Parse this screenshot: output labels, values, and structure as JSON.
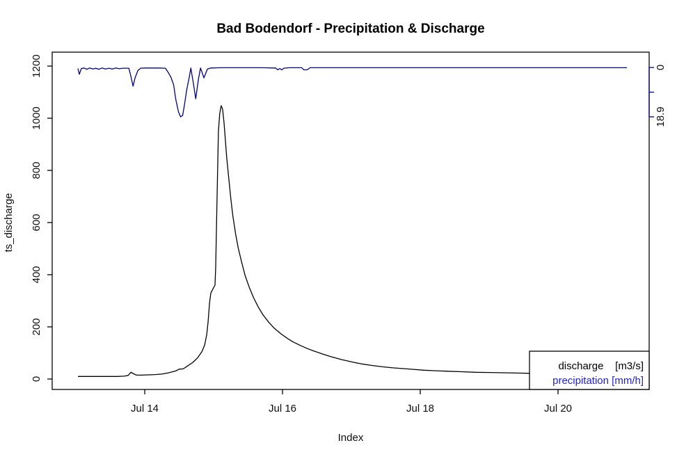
{
  "title": "Bad Bodendorf - Precipitation & Discharge",
  "x_axis": {
    "label": "Index",
    "ticks": [
      {
        "label": "Jul 14",
        "day": 14
      },
      {
        "label": "Jul 16",
        "day": 16
      },
      {
        "label": "Jul 18",
        "day": 18
      },
      {
        "label": "Jul 20",
        "day": 20
      }
    ]
  },
  "y_left": {
    "label": "ts_discharge",
    "ticks": [
      "0",
      "200",
      "400",
      "600",
      "800",
      "1000",
      "1200"
    ]
  },
  "y_right": {
    "ticks": [
      {
        "value": 0,
        "label": "0"
      },
      {
        "value": 9.45,
        "label": ""
      },
      {
        "value": 18.9,
        "label": "18.9"
      }
    ]
  },
  "legend": {
    "items": [
      {
        "label": "discharge    [m3/s]",
        "color": "#000000"
      },
      {
        "label": "precipitation [mm/h]",
        "color": "#2323cc"
      }
    ]
  },
  "colors": {
    "discharge_line": "#000000",
    "precipitation_line": "#000080",
    "precipitation_axis": "#000080",
    "precipitation_text": "#2323cc",
    "frame": "#000000"
  },
  "chart_data": {
    "type": "line",
    "title": "Bad Bodendorf - Precipitation & Discharge",
    "xlabel": "Index",
    "ylabel": "ts_discharge",
    "x_unit": "day of July",
    "x_range": [
      13.0,
      21.0
    ],
    "y_left_range": [
      0,
      1200
    ],
    "y_right_range": [
      0,
      18.9
    ],
    "y_right_inverted_from_top": true,
    "grid": false,
    "legend_position": "bottomright",
    "series": [
      {
        "name": "discharge [m3/s]",
        "axis": "left",
        "color": "#000000",
        "points": [
          [
            13.03,
            10
          ],
          [
            13.2,
            10
          ],
          [
            13.4,
            10
          ],
          [
            13.6,
            10
          ],
          [
            13.7,
            11
          ],
          [
            13.76,
            14
          ],
          [
            13.8,
            26
          ],
          [
            13.84,
            20
          ],
          [
            13.88,
            15
          ],
          [
            13.95,
            15
          ],
          [
            14.05,
            16
          ],
          [
            14.15,
            17
          ],
          [
            14.25,
            19
          ],
          [
            14.35,
            24
          ],
          [
            14.45,
            31
          ],
          [
            14.5,
            38
          ],
          [
            14.56,
            39
          ],
          [
            14.62,
            50
          ],
          [
            14.7,
            64
          ],
          [
            14.77,
            82
          ],
          [
            14.83,
            105
          ],
          [
            14.87,
            130
          ],
          [
            14.9,
            170
          ],
          [
            14.92,
            220
          ],
          [
            14.94,
            290
          ],
          [
            14.96,
            330
          ],
          [
            14.99,
            345
          ],
          [
            15.02,
            360
          ],
          [
            15.03,
            430
          ],
          [
            15.05,
            700
          ],
          [
            15.07,
            950
          ],
          [
            15.09,
            1020
          ],
          [
            15.11,
            1048
          ],
          [
            15.13,
            1035
          ],
          [
            15.15,
            985
          ],
          [
            15.17,
            920
          ],
          [
            15.19,
            850
          ],
          [
            15.22,
            770
          ],
          [
            15.25,
            690
          ],
          [
            15.28,
            625
          ],
          [
            15.32,
            555
          ],
          [
            15.36,
            500
          ],
          [
            15.41,
            445
          ],
          [
            15.46,
            395
          ],
          [
            15.52,
            350
          ],
          [
            15.58,
            312
          ],
          [
            15.65,
            275
          ],
          [
            15.72,
            245
          ],
          [
            15.8,
            218
          ],
          [
            15.88,
            195
          ],
          [
            15.97,
            175
          ],
          [
            16.06,
            158
          ],
          [
            16.15,
            143
          ],
          [
            16.25,
            130
          ],
          [
            16.35,
            118
          ],
          [
            16.45,
            108
          ],
          [
            16.57,
            97
          ],
          [
            16.7,
            86
          ],
          [
            16.85,
            75
          ],
          [
            17.0,
            66
          ],
          [
            17.15,
            58
          ],
          [
            17.3,
            52
          ],
          [
            17.45,
            47
          ],
          [
            17.6,
            43
          ],
          [
            17.75,
            40
          ],
          [
            17.9,
            37
          ],
          [
            18.05,
            34
          ],
          [
            18.2,
            32
          ],
          [
            18.4,
            30
          ],
          [
            18.6,
            28
          ],
          [
            18.8,
            26
          ],
          [
            19.0,
            25
          ],
          [
            19.2,
            24
          ],
          [
            19.4,
            23
          ],
          [
            19.6,
            22
          ],
          [
            19.8,
            21
          ],
          [
            20.0,
            21
          ],
          [
            20.2,
            20
          ],
          [
            20.4,
            20
          ],
          [
            20.6,
            19
          ],
          [
            20.8,
            19
          ],
          [
            21.0,
            19
          ]
        ]
      },
      {
        "name": "precipitation [mm/h]",
        "axis": "right",
        "color": "#000080",
        "points": [
          [
            13.03,
            0.4
          ],
          [
            13.05,
            2.6
          ],
          [
            13.08,
            0.4
          ],
          [
            13.12,
            0.2
          ],
          [
            13.16,
            0.7
          ],
          [
            13.2,
            0.2
          ],
          [
            13.25,
            0.6
          ],
          [
            13.29,
            0.3
          ],
          [
            13.33,
            0.7
          ],
          [
            13.38,
            0.2
          ],
          [
            13.43,
            0.6
          ],
          [
            13.48,
            0.3
          ],
          [
            13.53,
            0.6
          ],
          [
            13.58,
            0.2
          ],
          [
            13.63,
            0.5
          ],
          [
            13.68,
            0.3
          ],
          [
            13.73,
            0.3
          ],
          [
            13.77,
            0.3
          ],
          [
            13.8,
            3.5
          ],
          [
            13.83,
            7.2
          ],
          [
            13.86,
            4.0
          ],
          [
            13.9,
            1.2
          ],
          [
            13.94,
            0.3
          ],
          [
            14.0,
            0.2
          ],
          [
            14.1,
            0.2
          ],
          [
            14.2,
            0.2
          ],
          [
            14.3,
            0.3
          ],
          [
            14.34,
            1.9
          ],
          [
            14.38,
            3.7
          ],
          [
            14.42,
            6.7
          ],
          [
            14.45,
            12.0
          ],
          [
            14.47,
            14.6
          ],
          [
            14.49,
            17.0
          ],
          [
            14.52,
            18.9
          ],
          [
            14.55,
            18.4
          ],
          [
            14.58,
            13.8
          ],
          [
            14.61,
            8.5
          ],
          [
            14.65,
            3.2
          ],
          [
            14.67,
            0.2
          ],
          [
            14.71,
            6.7
          ],
          [
            14.74,
            12.0
          ],
          [
            14.78,
            4.5
          ],
          [
            14.81,
            0.2
          ],
          [
            14.86,
            4.0
          ],
          [
            14.91,
            0.6
          ],
          [
            14.96,
            0.2
          ],
          [
            15.1,
            0.1
          ],
          [
            15.4,
            0.1
          ],
          [
            15.7,
            0.1
          ],
          [
            15.9,
            0.2
          ],
          [
            15.93,
            0.9
          ],
          [
            15.96,
            0.4
          ],
          [
            15.99,
            0.9
          ],
          [
            16.02,
            0.3
          ],
          [
            16.1,
            0.1
          ],
          [
            16.28,
            0.1
          ],
          [
            16.31,
            0.9
          ],
          [
            16.36,
            0.9
          ],
          [
            16.4,
            0.1
          ],
          [
            16.6,
            0.1
          ],
          [
            17.0,
            0.1
          ],
          [
            17.5,
            0.1
          ],
          [
            18.0,
            0.1
          ],
          [
            18.5,
            0.1
          ],
          [
            19.0,
            0.1
          ],
          [
            19.5,
            0.1
          ],
          [
            20.0,
            0.1
          ],
          [
            20.5,
            0.1
          ],
          [
            21.0,
            0.1
          ]
        ]
      }
    ]
  }
}
